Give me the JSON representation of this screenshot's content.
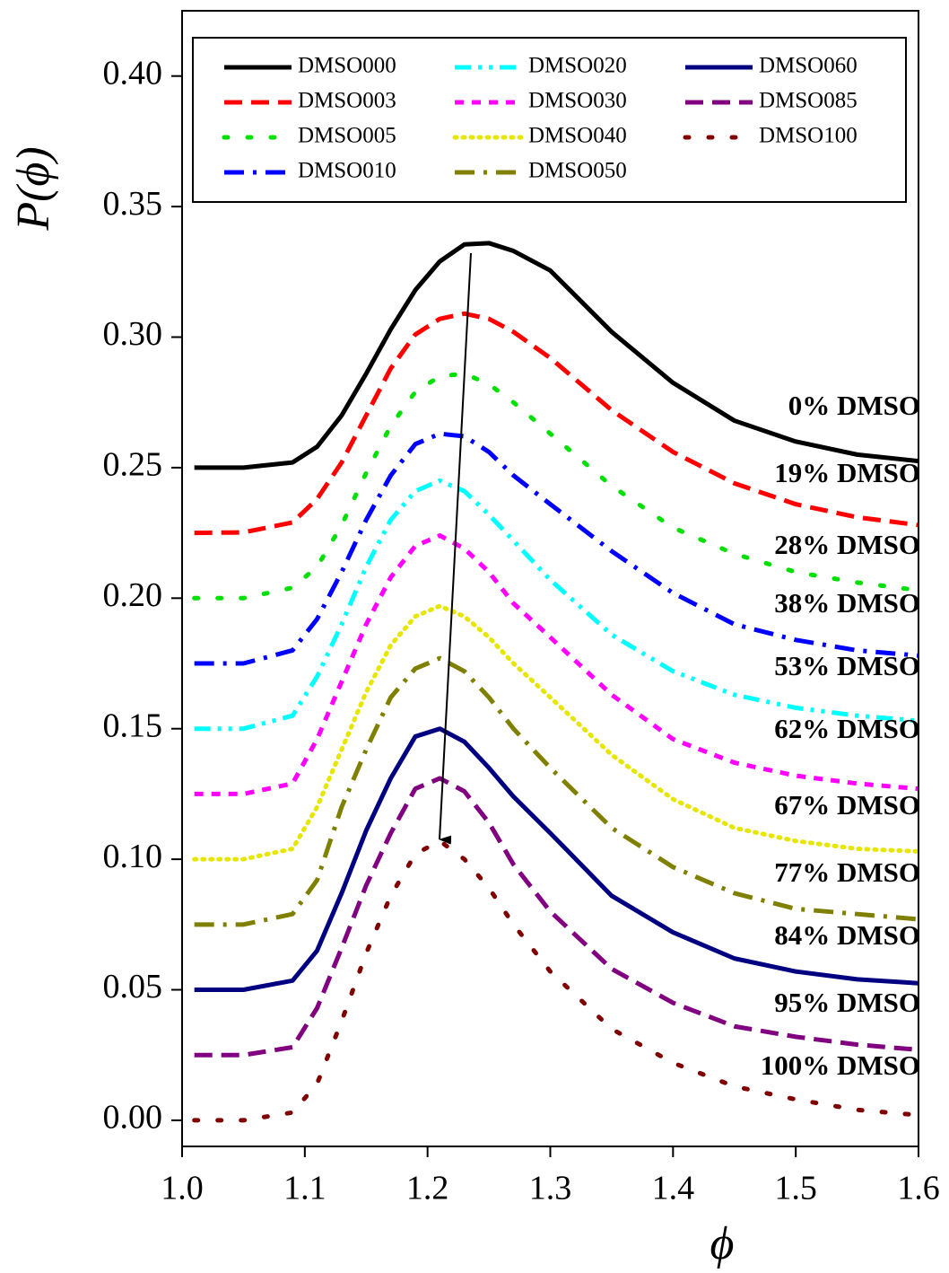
{
  "chart_data": {
    "type": "line",
    "x_label": "ϕ",
    "y_label": "P(ϕ)",
    "x": [
      1.01,
      1.05,
      1.09,
      1.11,
      1.13,
      1.15,
      1.17,
      1.19,
      1.21,
      1.23,
      1.25,
      1.27,
      1.3,
      1.35,
      1.4,
      1.45,
      1.5,
      1.55,
      1.6
    ],
    "xlim": [
      1.0,
      1.6
    ],
    "xticks": [
      {
        "value": 1.0,
        "label": "1.0"
      },
      {
        "value": 1.1,
        "label": "1.1"
      },
      {
        "value": 1.2,
        "label": "1.2"
      },
      {
        "value": 1.3,
        "label": "1.3"
      },
      {
        "value": 1.4,
        "label": "1.4"
      },
      {
        "value": 1.5,
        "label": "1.5"
      },
      {
        "value": 1.6,
        "label": "1.6"
      }
    ],
    "ylim": [
      -0.01,
      0.425
    ],
    "yticks": [
      {
        "value": 0,
        "label": "0.00"
      },
      {
        "value": 0.05,
        "label": "0.05"
      },
      {
        "value": 0.1,
        "label": "0.10"
      },
      {
        "value": 0.15,
        "label": "0.15"
      },
      {
        "value": 0.2,
        "label": "0.20"
      },
      {
        "value": 0.25,
        "label": "0.25"
      },
      {
        "value": 0.3,
        "label": "0.30"
      },
      {
        "value": 0.35,
        "label": "0.35"
      },
      {
        "value": 0.4,
        "label": "0.40"
      }
    ],
    "legend": "top",
    "series": [
      {
        "name": "DMSO000",
        "color": "#000000",
        "dash": "solid",
        "values": [
          0.25,
          0.25,
          0.252,
          0.258,
          0.27,
          0.286,
          0.303,
          0.318,
          0.329,
          0.3355,
          0.336,
          0.333,
          0.3255,
          0.302,
          0.2825,
          0.268,
          0.26,
          0.255,
          0.2525
        ]
      },
      {
        "name": "DMSO003",
        "color": "#ff0000",
        "dash": "dash",
        "values": [
          0.225,
          0.2252,
          0.229,
          0.238,
          0.252,
          0.27,
          0.288,
          0.301,
          0.307,
          0.309,
          0.307,
          0.302,
          0.292,
          0.272,
          0.256,
          0.244,
          0.236,
          0.231,
          0.228
        ]
      },
      {
        "name": "DMSO005",
        "color": "#00e000",
        "dash": "dot",
        "values": [
          0.2,
          0.2,
          0.204,
          0.212,
          0.228,
          0.248,
          0.266,
          0.279,
          0.285,
          0.286,
          0.282,
          0.275,
          0.263,
          0.243,
          0.227,
          0.217,
          0.21,
          0.206,
          0.203
        ]
      },
      {
        "name": "DMSO010",
        "color": "#0000ff",
        "dash": "dashdot",
        "values": [
          0.175,
          0.175,
          0.18,
          0.192,
          0.21,
          0.23,
          0.247,
          0.259,
          0.263,
          0.262,
          0.256,
          0.247,
          0.236,
          0.218,
          0.202,
          0.19,
          0.184,
          0.18,
          0.178
        ]
      },
      {
        "name": "DMSO020",
        "color": "#00ffff",
        "dash": "dashdotdot",
        "values": [
          0.15,
          0.15,
          0.155,
          0.17,
          0.19,
          0.212,
          0.23,
          0.241,
          0.245,
          0.241,
          0.232,
          0.222,
          0.207,
          0.186,
          0.172,
          0.163,
          0.158,
          0.155,
          0.153
        ]
      },
      {
        "name": "DMSO030",
        "color": "#ff00ff",
        "dash": "shortdash",
        "values": [
          0.125,
          0.125,
          0.129,
          0.146,
          0.168,
          0.19,
          0.208,
          0.22,
          0.224,
          0.219,
          0.21,
          0.198,
          0.185,
          0.163,
          0.146,
          0.137,
          0.132,
          0.129,
          0.127
        ]
      },
      {
        "name": "DMSO040",
        "color": "#e6e600",
        "dash": "shortdot",
        "values": [
          0.1,
          0.1,
          0.104,
          0.12,
          0.142,
          0.164,
          0.182,
          0.193,
          0.197,
          0.193,
          0.185,
          0.175,
          0.162,
          0.14,
          0.123,
          0.112,
          0.107,
          0.104,
          0.103
        ]
      },
      {
        "name": "DMSO050",
        "color": "#808000",
        "dash": "dashdot",
        "values": [
          0.075,
          0.075,
          0.079,
          0.092,
          0.12,
          0.142,
          0.162,
          0.173,
          0.177,
          0.172,
          0.162,
          0.15,
          0.135,
          0.112,
          0.097,
          0.087,
          0.081,
          0.079,
          0.077
        ]
      },
      {
        "name": "DMSO060",
        "color": "#000080",
        "dash": "solid",
        "values": [
          0.05,
          0.05,
          0.0535,
          0.065,
          0.087,
          0.111,
          0.131,
          0.147,
          0.15,
          0.145,
          0.135,
          0.124,
          0.11,
          0.086,
          0.072,
          0.062,
          0.057,
          0.054,
          0.0525
        ]
      },
      {
        "name": "DMSO085",
        "color": "#800080",
        "dash": "dash",
        "values": [
          0.025,
          0.025,
          0.028,
          0.043,
          0.066,
          0.09,
          0.11,
          0.127,
          0.131,
          0.126,
          0.114,
          0.098,
          0.08,
          0.058,
          0.045,
          0.036,
          0.032,
          0.029,
          0.027
        ]
      },
      {
        "name": "DMSO100",
        "color": "#800000",
        "dash": "dot",
        "values": [
          0,
          0,
          0.003,
          0.014,
          0.038,
          0.064,
          0.086,
          0.102,
          0.107,
          0.1,
          0.089,
          0.075,
          0.057,
          0.035,
          0.022,
          0.013,
          0.008,
          0.004,
          0.002
        ]
      }
    ],
    "annotations": [
      "0%  DMSO",
      "19%  DMSO",
      "28%  DMSO",
      "38%  DMSO",
      "53%  DMSO",
      "62%  DMSO",
      "67%  DMSO",
      "77%  DMSO",
      "84%  DMSO",
      "95%  DMSO",
      "100%  DMSO"
    ]
  }
}
